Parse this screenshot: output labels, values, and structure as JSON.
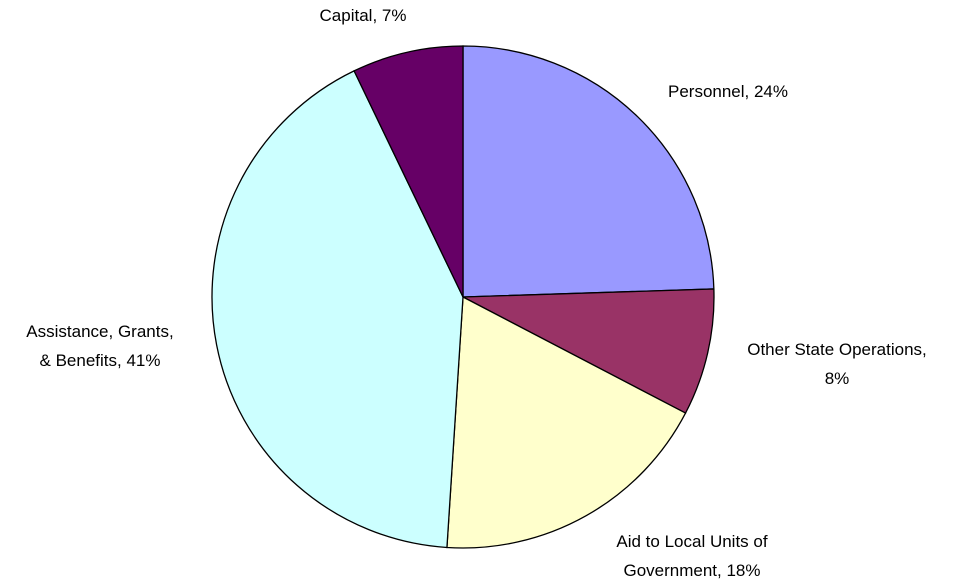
{
  "chart_data": {
    "type": "pie",
    "categories": [
      "Personnel, 24%",
      "Other State Operations, 8%",
      "Aid to Local Units of Government, 18%",
      "Assistance, Grants, & Benefits, 41%",
      "Capital, 7%"
    ],
    "values": [
      24,
      8,
      18,
      41,
      7
    ],
    "colors": [
      "#9999ff",
      "#993366",
      "#ffffcc",
      "#ccffff",
      "#660066"
    ]
  }
}
